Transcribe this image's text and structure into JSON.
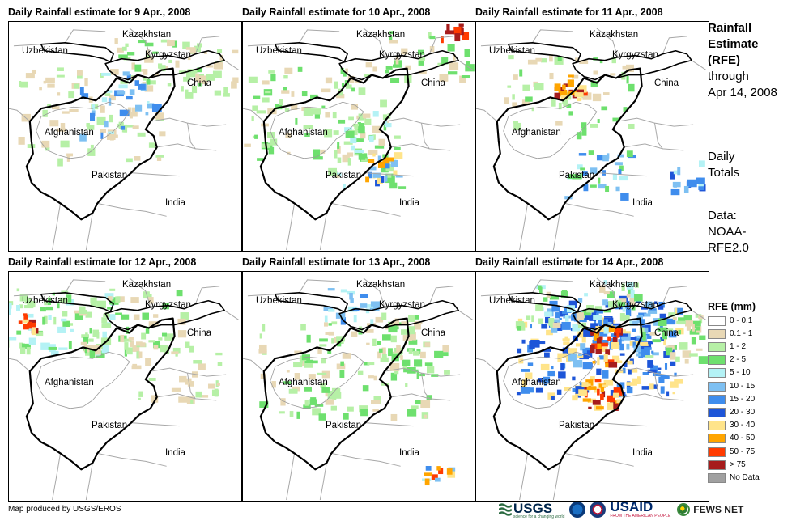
{
  "panels": [
    {
      "title": "Daily Rainfall estimate for 9 Apr., 2008",
      "intensity": "light"
    },
    {
      "title": "Daily Rainfall estimate for 10 Apr., 2008",
      "intensity": "light-moderate"
    },
    {
      "title": "Daily Rainfall estimate for 11 Apr., 2008",
      "intensity": "scattered"
    },
    {
      "title": "Daily Rainfall estimate for 12 Apr., 2008",
      "intensity": "light-north"
    },
    {
      "title": "Daily Rainfall estimate for 13 Apr., 2008",
      "intensity": "light-widespread"
    },
    {
      "title": "Daily Rainfall estimate for 14 Apr., 2008",
      "intensity": "heavy"
    }
  ],
  "map_labels": {
    "kazakhstan": "Kazakhstan",
    "uzbekistan": "Uzbekistan",
    "kyrgyzstan": "Kyrgyzstan",
    "china": "China",
    "afghanistan": "Afghanistan",
    "pakistan": "Pakistan",
    "india": "India"
  },
  "side": {
    "title_line1": "Rainfall",
    "title_line2": "Estimate",
    "title_line3": "(RFE)",
    "through": "through",
    "date": "Apr 14, 2008",
    "daily_line1": "Daily",
    "daily_line2": "Totals",
    "data_line1": "Data:",
    "data_line2": "NOAA-",
    "data_line3": "RFE2.0"
  },
  "legend": {
    "title": "RFE (mm)",
    "items": [
      {
        "label": "0 - 0.1",
        "color": "#ffffff"
      },
      {
        "label": "0.1 - 1",
        "color": "#e8d8b5"
      },
      {
        "label": "1 - 2",
        "color": "#b6f0a6"
      },
      {
        "label": "2 - 5",
        "color": "#6ee06e"
      },
      {
        "label": "5 - 10",
        "color": "#b4f2f5"
      },
      {
        "label": "10 - 15",
        "color": "#7ec0f2"
      },
      {
        "label": "15 - 20",
        "color": "#3f8ded"
      },
      {
        "label": "20 - 30",
        "color": "#1d55d8"
      },
      {
        "label": "30 - 40",
        "color": "#ffe48a"
      },
      {
        "label": "40 - 50",
        "color": "#ffa500"
      },
      {
        "label": "50 - 75",
        "color": "#ff3b00"
      },
      {
        "label": "> 75",
        "color": "#a61c1c"
      },
      {
        "label": "No Data",
        "color": "#a0a0a0"
      }
    ]
  },
  "credit": "Map produced by USGS/EROS",
  "logos": {
    "usgs": "USGS",
    "usgs_tagline": "science for a changing world",
    "noaa": "NOAA",
    "usaid": "USAID",
    "usaid_tagline": "FROM THE AMERICAN PEOPLE",
    "fews": "FEWS NET"
  }
}
